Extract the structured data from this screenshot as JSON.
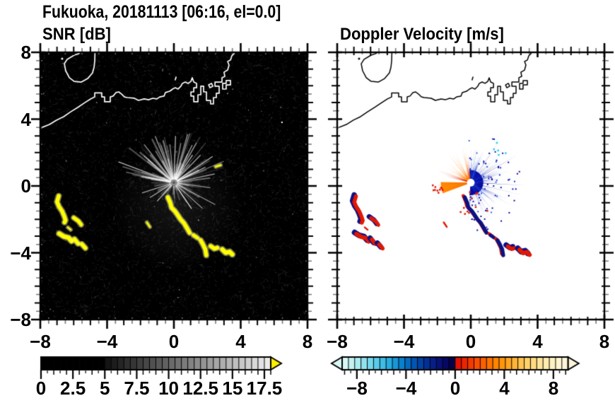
{
  "header": {
    "title": "Fukuoka, 20181113 [06:16, el=0.0]"
  },
  "chart_data": {
    "type": "heatmap",
    "description": "Dual-panel radar PPI display over Fukuoka / Hakata Bay",
    "x_range": [
      -8,
      8
    ],
    "y_range": [
      -8,
      8
    ],
    "x_tick_labels": [
      "−8",
      "−4",
      "0",
      "4",
      "8"
    ],
    "x_tick_values": [
      -8,
      -4,
      0,
      4,
      8
    ],
    "y_tick_labels": [
      "8",
      "4",
      "0",
      "−4",
      "−8"
    ],
    "y_tick_values": [
      8,
      4,
      0,
      -4,
      -8
    ],
    "minor_tick_step": 0.5,
    "radar_center": [
      0.0,
      0.2
    ],
    "panels": [
      {
        "id": "snr",
        "title": "SNR [dB]",
        "units": "dB",
        "background": "#000000"
      },
      {
        "id": "velocity",
        "title": "Doppler Velocity [m/s]",
        "units": "m/s",
        "background": "#ffffff"
      }
    ],
    "colorbars": {
      "snr": {
        "range": [
          0,
          18
        ],
        "tick_labels": [
          "0",
          "2.5",
          "5",
          "7.5",
          "10",
          "12.5",
          "15",
          "17.5"
        ],
        "label_values": [
          0,
          2.5,
          5,
          7.5,
          10,
          12.5,
          15,
          17.5
        ],
        "major_step": 2.5,
        "overflow_arrow": "#ffef00",
        "cells": [
          "#000000",
          "#000000",
          "#000000",
          "#000000",
          "#000000",
          "#000000",
          "#000000",
          "#000000",
          "#000000",
          "#000000",
          "#141414",
          "#1d1d1d",
          "#252525",
          "#2e2e2e",
          "#363636",
          "#3f3f3f",
          "#474747",
          "#505050",
          "#585858",
          "#616161",
          "#6a6a6a",
          "#727272",
          "#7b7b7b",
          "#838383",
          "#8c8c8c",
          "#949494",
          "#9d9d9d",
          "#a6a6a6",
          "#aeaeae",
          "#b7b7b7",
          "#bfbfbf",
          "#c8c8c8",
          "#d0d0d0",
          "#d9d9d9",
          "#e2e2e2",
          "#eaeaea"
        ]
      },
      "velocity": {
        "range": [
          -9.2,
          9.2
        ],
        "tick_labels": [
          "−8",
          "−4",
          "0",
          "4",
          "8"
        ],
        "label_values": [
          -8,
          -4,
          0,
          4,
          8
        ],
        "major_step": 4,
        "under_arrow": "#d8f7f4",
        "over_arrow": "#fcf5d9",
        "cells": [
          "#d8f7f4",
          "#c3f1f1",
          "#abebf0",
          "#91e2ef",
          "#74d7ed",
          "#58cbea",
          "#3ebde6",
          "#27ace0",
          "#1697d8",
          "#0a81cd",
          "#056ac0",
          "#0355b2",
          "#0342a4",
          "#043096",
          "#062088",
          "#071278",
          "#060864",
          "#04034a",
          "#df1300",
          "#e92600",
          "#f23a00",
          "#f84e00",
          "#fc6000",
          "#fe7200",
          "#ff8400",
          "#ff950a",
          "#ffa51f",
          "#ffb437",
          "#ffc350",
          "#ffd069",
          "#ffdc82",
          "#ffe59a",
          "#ffecb0",
          "#fff1c2",
          "#fff5d0",
          "#fcf5d9"
        ]
      }
    },
    "coastline": {
      "island": [
        [
          -5.46,
          8.1
        ],
        [
          -5.7,
          7.92
        ],
        [
          -5.97,
          7.83
        ],
        [
          -6.39,
          7.58
        ],
        [
          -6.56,
          7.32
        ],
        [
          -6.48,
          6.9
        ],
        [
          -6.26,
          6.48
        ],
        [
          -5.97,
          6.26
        ],
        [
          -5.54,
          6.22
        ],
        [
          -5.16,
          6.43
        ],
        [
          -4.87,
          6.77
        ],
        [
          -4.78,
          7.11
        ],
        [
          -4.74,
          7.49
        ],
        [
          -4.72,
          8.1
        ]
      ],
      "island_dot": [
        -6.69,
        7.62
      ],
      "mainland": [
        [
          -8.1,
          3.42
        ],
        [
          -7.45,
          3.68
        ],
        [
          -7.03,
          3.94
        ],
        [
          -6.6,
          4.15
        ],
        [
          -6.18,
          4.44
        ],
        [
          -5.76,
          4.7
        ],
        [
          -5.33,
          4.99
        ],
        [
          -4.99,
          5.21
        ],
        [
          -4.74,
          5.33
        ],
        [
          -4.74,
          5.57
        ],
        [
          -4.32,
          5.57
        ],
        [
          -4.32,
          5.33
        ],
        [
          -4.15,
          5.33
        ],
        [
          -4.15,
          5.04
        ],
        [
          -3.81,
          5.04
        ],
        [
          -3.81,
          5.33
        ],
        [
          -3.64,
          5.38
        ],
        [
          -3.47,
          5.59
        ],
        [
          -3.3,
          5.63
        ],
        [
          -3.13,
          5.5
        ],
        [
          -2.96,
          5.33
        ],
        [
          -2.79,
          5.29
        ],
        [
          -2.37,
          5.25
        ],
        [
          -2.12,
          5.12
        ],
        [
          -1.78,
          5.21
        ],
        [
          -1.52,
          5.16
        ],
        [
          -1.27,
          5.25
        ],
        [
          -1.02,
          5.21
        ],
        [
          -0.85,
          5.33
        ],
        [
          -0.59,
          5.38
        ],
        [
          -0.51,
          5.59
        ],
        [
          -0.25,
          5.67
        ],
        [
          -0.08,
          5.8
        ],
        [
          0.08,
          5.88
        ],
        [
          0.25,
          5.8
        ],
        [
          0.42,
          5.97
        ],
        [
          0.51,
          6.14
        ],
        [
          0.68,
          6.22
        ],
        [
          0.85,
          6.14
        ],
        [
          1.02,
          6.26
        ],
        [
          1.1,
          6.48
        ],
        [
          1.19,
          6.22
        ],
        [
          1.36,
          6.14
        ],
        [
          1.36,
          5.88
        ],
        [
          1.19,
          5.88
        ],
        [
          1.19,
          5.63
        ],
        [
          1.02,
          5.63
        ],
        [
          1.02,
          5.38
        ],
        [
          1.19,
          5.38
        ],
        [
          1.19,
          5.04
        ],
        [
          1.44,
          5.04
        ],
        [
          1.44,
          5.46
        ],
        [
          1.61,
          5.46
        ],
        [
          1.61,
          5.97
        ],
        [
          1.78,
          5.97
        ],
        [
          1.78,
          5.63
        ],
        [
          1.95,
          5.63
        ],
        [
          1.95,
          5.12
        ],
        [
          2.2,
          5.12
        ],
        [
          2.2,
          4.91
        ],
        [
          2.37,
          4.91
        ],
        [
          2.37,
          5.29
        ],
        [
          2.54,
          5.29
        ],
        [
          2.54,
          5.55
        ],
        [
          2.71,
          5.55
        ],
        [
          2.71,
          5.97
        ],
        [
          2.46,
          5.97
        ],
        [
          2.46,
          6.22
        ],
        [
          2.88,
          6.22
        ],
        [
          2.88,
          6.48
        ],
        [
          3.05,
          6.56
        ],
        [
          3.0,
          6.81
        ],
        [
          3.22,
          6.94
        ],
        [
          3.3,
          7.24
        ],
        [
          3.22,
          7.45
        ],
        [
          3.39,
          7.54
        ],
        [
          3.47,
          7.79
        ],
        [
          3.6,
          7.92
        ],
        [
          3.68,
          8.1
        ]
      ],
      "pier_loop": [
        [
          2.92,
          5.8
        ],
        [
          3.13,
          5.8
        ],
        [
          3.13,
          6.05
        ],
        [
          3.39,
          6.05
        ],
        [
          3.39,
          6.31
        ],
        [
          3.13,
          6.31
        ],
        [
          3.13,
          6.14
        ],
        [
          2.92,
          6.14
        ],
        [
          2.92,
          5.8
        ]
      ],
      "pier_small": [
        [
          2.16,
          5.88
        ],
        [
          2.33,
          5.97
        ],
        [
          2.25,
          6.14
        ],
        [
          2.08,
          6.05
        ],
        [
          2.16,
          5.88
        ]
      ],
      "coast_dash": [
        [
          0.08,
          6.35
        ],
        [
          0.13,
          6.52
        ]
      ],
      "speck": [
        6.43,
        3.85
      ]
    },
    "echoes": [
      {
        "name": "west-arc",
        "pts": [
          [
            -6.9,
            -0.6
          ],
          [
            -7.0,
            -0.95
          ],
          [
            -6.87,
            -1.25
          ],
          [
            -6.7,
            -1.5
          ],
          [
            -6.57,
            -1.8
          ],
          [
            -6.49,
            -2.05
          ],
          [
            -6.55,
            -2.18
          ]
        ],
        "w": 5.5,
        "rstyle": "rn"
      },
      {
        "name": "west-small",
        "pts": [
          [
            -6.0,
            -1.9
          ],
          [
            -5.72,
            -2.1
          ],
          [
            -5.55,
            -2.32
          ]
        ],
        "w": 5,
        "rstyle": "rn"
      },
      {
        "name": "west-dash",
        "pts": [
          [
            -6.35,
            -2.48
          ],
          [
            -6.18,
            -2.62
          ]
        ],
        "w": 2.5,
        "rstyle": "r"
      },
      {
        "name": "sw-blob-a",
        "pts": [
          [
            -6.87,
            -2.85
          ],
          [
            -6.6,
            -3.02
          ],
          [
            -6.3,
            -3.1
          ],
          [
            -6.13,
            -3.3
          ]
        ],
        "w": 6,
        "rstyle": "rn"
      },
      {
        "name": "sw-blob-b",
        "pts": [
          [
            -5.95,
            -3.18
          ],
          [
            -5.74,
            -3.45
          ]
        ],
        "w": 5.5,
        "rstyle": "rn"
      },
      {
        "name": "sw-blob-c",
        "pts": [
          [
            -5.51,
            -3.48
          ],
          [
            -5.3,
            -3.72
          ]
        ],
        "w": 5.5,
        "rstyle": "rn"
      },
      {
        "name": "mid-dash",
        "pts": [
          [
            -1.62,
            -2.18
          ],
          [
            -1.44,
            -2.45
          ]
        ],
        "w": 2.5,
        "rstyle": "r"
      },
      {
        "name": "trail-a",
        "pts": [
          [
            -0.36,
            -0.68
          ],
          [
            -0.22,
            -1.0
          ],
          [
            -0.14,
            -1.3
          ],
          [
            0.06,
            -1.5
          ],
          [
            0.24,
            -1.76
          ],
          [
            0.4,
            -2.0
          ],
          [
            0.6,
            -2.22
          ],
          [
            0.8,
            -2.55
          ],
          [
            0.94,
            -2.8
          ]
        ],
        "w": 5.5,
        "rstyle": "nr"
      },
      {
        "name": "trail-b",
        "pts": [
          [
            1.18,
            -2.95
          ],
          [
            1.4,
            -3.1
          ]
        ],
        "w": 5,
        "rstyle": "nr"
      },
      {
        "name": "trail-c",
        "pts": [
          [
            1.6,
            -3.25
          ],
          [
            1.74,
            -3.5
          ],
          [
            1.88,
            -3.8
          ],
          [
            1.94,
            -4.15
          ]
        ],
        "w": 5.5,
        "rstyle": "nr"
      },
      {
        "name": "se-piece-a",
        "pts": [
          [
            2.2,
            -3.6
          ],
          [
            2.42,
            -3.76
          ],
          [
            2.6,
            -3.7
          ]
        ],
        "w": 5.5,
        "rstyle": "rn"
      },
      {
        "name": "se-piece-b",
        "pts": [
          [
            2.9,
            -3.8
          ],
          [
            3.1,
            -4.0
          ],
          [
            3.34,
            -3.94
          ],
          [
            3.5,
            -4.1
          ]
        ],
        "w": 6,
        "rstyle": "rn"
      },
      {
        "name": "ne-dash",
        "pts": [
          [
            2.5,
            1.15
          ],
          [
            2.8,
            1.25
          ]
        ],
        "w": 2.5,
        "rstyle": "none"
      }
    ],
    "snr_fan": {
      "beam_color": "#ffffff",
      "echo_color": "#ffff00",
      "random_beams": 150,
      "seed": 7,
      "noise_seed": 3,
      "dark_sectors": [
        [
          187,
          213
        ],
        [
          167,
          177
        ],
        [
          249,
          257
        ]
      ],
      "bright_beams": [
        [
          312,
          2.4
        ],
        [
          322,
          2.9
        ],
        [
          330,
          2.2
        ],
        [
          338,
          3.0
        ],
        [
          346,
          2.6
        ],
        [
          354,
          2.3
        ],
        [
          2,
          2.8
        ],
        [
          10,
          2.4
        ],
        [
          18,
          3.1
        ],
        [
          26,
          2.5
        ],
        [
          34,
          2.0
        ],
        [
          44,
          2.3
        ],
        [
          56,
          2.8
        ],
        [
          64,
          2.1
        ],
        [
          78,
          2.5
        ],
        [
          98,
          2.2
        ],
        [
          118,
          2.8
        ],
        [
          132,
          2.3
        ],
        [
          146,
          1.9
        ],
        [
          290.5,
          3.55
        ],
        [
          282,
          1.6
        ],
        [
          252,
          2.0
        ],
        [
          238,
          1.7
        ],
        [
          222,
          1.5
        ]
      ]
    },
    "velocity_fan": {
      "blue": {
        "seed": 11,
        "count": 185,
        "az": [
          -6,
          186
        ],
        "core_r": 0.75,
        "colors": [
          "#0a0da0",
          "#1638d6",
          "#2e62ea",
          "#3fa9f2",
          "#23cdf4"
        ]
      },
      "orange": {
        "seed": 23,
        "count": 95,
        "az": [
          286,
          354
        ],
        "colors": [
          "#ff7d06",
          "#ff9b22",
          "#f8520a"
        ]
      },
      "wedge": {
        "seed": 31,
        "az": [
          249,
          271
        ],
        "len": 2.25,
        "color": "#ff8a06"
      },
      "red_edges": [
        [
          346,
          358
        ],
        [
          283,
          294
        ]
      ],
      "red": "#e41703",
      "navy": "#0d1180",
      "hole_r": 5.5
    }
  }
}
